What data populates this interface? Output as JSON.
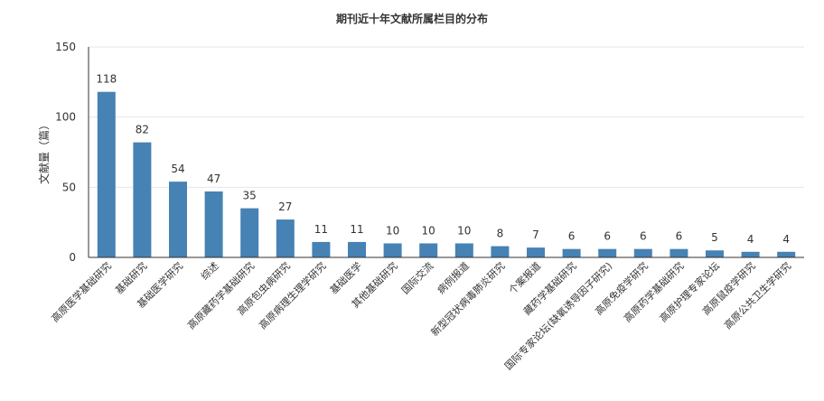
{
  "chart_data": {
    "type": "bar",
    "title": "期刊近十年文献所属栏目的分布",
    "xlabel": "",
    "ylabel": "文献量（篇）",
    "ylim": [
      0,
      150
    ],
    "yticks": [
      0,
      50,
      100,
      150
    ],
    "grid": true,
    "bar_color": "#4682b4",
    "categories": [
      "高原医学基础研究",
      "基础研究",
      "基础医学研究",
      "综述",
      "高原藏药学基础研究",
      "高原包虫病研究",
      "高原病理生理学研究",
      "基础医学",
      "其他基础研究",
      "国际交流",
      "病例报道",
      "新型冠状病毒肺炎研究",
      "个案报道",
      "藏药学基础研究",
      "国际专家论坛(缺氧诱导因子研究)",
      "高原免疫学研究",
      "高原药学基础研究",
      "高原护理专家论坛",
      "高原鼠疫学研究",
      "高原公共卫生学研究"
    ],
    "values": [
      118,
      82,
      54,
      47,
      35,
      27,
      11,
      11,
      10,
      10,
      10,
      8,
      7,
      6,
      6,
      6,
      6,
      5,
      4,
      4
    ]
  }
}
